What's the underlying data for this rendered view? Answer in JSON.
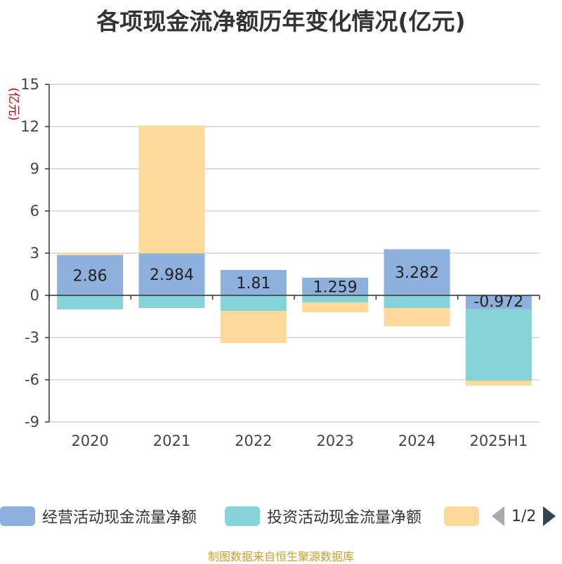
{
  "title": "各项现金流净额历年变化情况(亿元)",
  "y_unit": "(亿元)",
  "source": "制图数据来自恒生聚源数据库",
  "legend": {
    "items": [
      {
        "label": "经营活动现金流量净额",
        "color": "#8eb0dc"
      },
      {
        "label": "投资活动现金流量净额",
        "color": "#86d4d8"
      },
      {
        "label": "",
        "color": "#ffd99b"
      }
    ],
    "page": "1/2"
  },
  "chart_data": {
    "type": "bar",
    "stacked": true,
    "categories": [
      "2020",
      "2021",
      "2022",
      "2023",
      "2024",
      "2025H1"
    ],
    "y_ticks": [
      "15",
      "12",
      "9",
      "6",
      "3",
      "0",
      "-3",
      "-6",
      "-9"
    ],
    "ylim": [
      -9,
      15
    ],
    "grid": true,
    "legend_position": "bottom",
    "series": [
      {
        "name": "经营活动现金流量净额",
        "color": "#8eb0dc",
        "values": [
          2.86,
          2.984,
          1.81,
          1.259,
          3.282,
          -0.972
        ]
      },
      {
        "name": "投资活动现金流量净额",
        "color": "#86d4d8",
        "values": [
          -1.0,
          -0.9,
          -1.1,
          -0.5,
          -0.9,
          -5.1
        ]
      },
      {
        "color": "#ffd99b",
        "values": [
          0.15,
          9.1,
          -2.3,
          -0.7,
          -1.3,
          -0.35
        ]
      }
    ],
    "data_labels": [
      "2.86",
      "2.984",
      "1.81",
      "1.259",
      "3.282",
      "-0.972"
    ]
  }
}
